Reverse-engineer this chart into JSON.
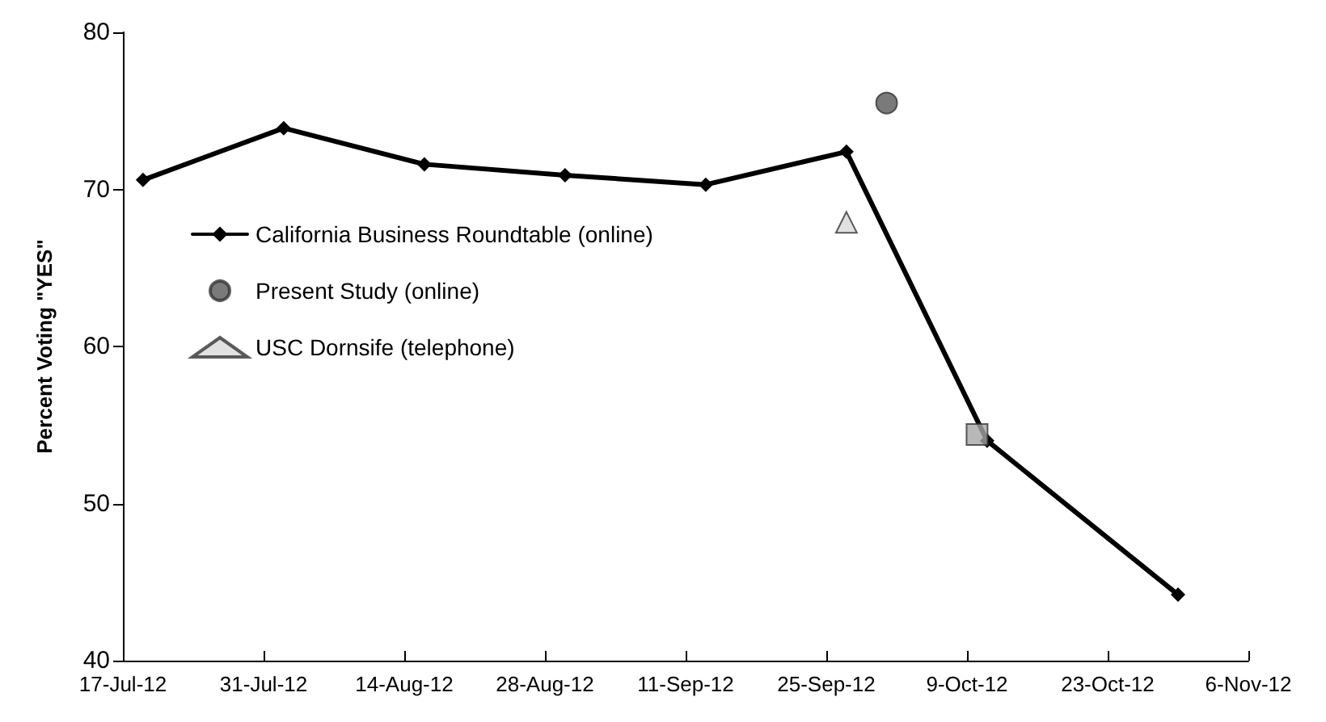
{
  "chart_data": {
    "type": "line",
    "ylabel": "Percent Voting \"YES\"",
    "x": [
      "2012-07-19",
      "2012-08-02",
      "2012-08-16",
      "2012-08-30",
      "2012-09-13",
      "2012-09-27",
      "2012-10-11",
      "2012-10-30"
    ],
    "series": [
      {
        "name": "California Business Roundtable (online)",
        "marker": "diamond",
        "color": "#000000",
        "values": [
          70.6,
          73.9,
          71.6,
          70.9,
          70.3,
          72.4,
          54.0,
          44.2
        ]
      },
      {
        "name": "Present Study (online)",
        "type": "scatter",
        "marker": "circle",
        "color": "#595959",
        "x": [
          "2012-10-01"
        ],
        "values": [
          75.5
        ]
      },
      {
        "type": "scatter",
        "marker": "square",
        "color": "#a6a6a6",
        "x": [
          "2012-10-10"
        ],
        "values": [
          54.4
        ]
      },
      {
        "name": "USC Dornsife (telephone)",
        "type": "scatter",
        "marker": "triangle",
        "color": "#d9d9d9",
        "x": [
          "2012-09-27"
        ],
        "values": [
          67.9
        ]
      }
    ],
    "xlim": [
      "2012-07-17",
      "2012-11-06"
    ],
    "xticks": [
      {
        "value": "2012-07-17",
        "label": "17-Jul-12"
      },
      {
        "value": "2012-07-31",
        "label": "31-Jul-12"
      },
      {
        "value": "2012-08-14",
        "label": "14-Aug-12"
      },
      {
        "value": "2012-08-28",
        "label": "28-Aug-12"
      },
      {
        "value": "2012-09-11",
        "label": "11-Sep-12"
      },
      {
        "value": "2012-09-25",
        "label": "25-Sep-12"
      },
      {
        "value": "2012-10-09",
        "label": "9-Oct-12"
      },
      {
        "value": "2012-10-23",
        "label": "23-Oct-12"
      },
      {
        "value": "2012-11-06",
        "label": "6-Nov-12"
      }
    ],
    "ylim": [
      40,
      80
    ],
    "yticks": [
      40,
      50,
      60,
      70,
      80
    ],
    "grid": false,
    "legend": "left"
  }
}
